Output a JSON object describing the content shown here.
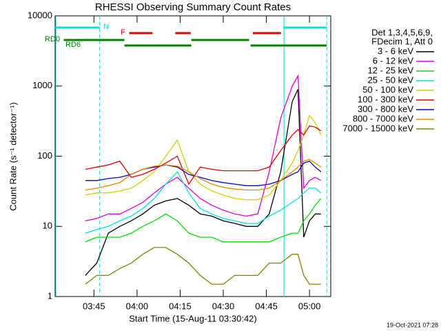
{
  "chart_data": {
    "type": "line",
    "title": "RHESSI Observing Summary Count Rates",
    "x_label": "Start Time (15-Aug-11 03:30:42)",
    "y_label": "Count Rate (s⁻¹ detector⁻¹)",
    "legend_header": [
      "Det 1,3,4,5,6,9,",
      "FDecim 1, Att 0"
    ],
    "footer": "19-Oct-2021 07:28",
    "log_y": true,
    "xlim": [
      211.5,
      307.4
    ],
    "xticks": [
      {
        "value": 225,
        "label": "03:45"
      },
      {
        "value": 240,
        "label": "04:00"
      },
      {
        "value": 255,
        "label": "04:15"
      },
      {
        "value": 270,
        "label": "04:30"
      },
      {
        "value": 285,
        "label": "04:45"
      },
      {
        "value": 300,
        "label": "05:00"
      }
    ],
    "ylim": [
      1,
      10000
    ],
    "yticks": [
      1,
      10,
      100,
      1000,
      10000
    ],
    "x": [
      222,
      226,
      230,
      234,
      238,
      242,
      246,
      250,
      254,
      258,
      262,
      266,
      270,
      274,
      278,
      282,
      286,
      290,
      294,
      296,
      298,
      300,
      302,
      304
    ],
    "series": [
      {
        "name": "3 - 6 keV",
        "color": "#000000",
        "values": [
          2,
          3,
          8,
          10,
          12,
          15,
          20,
          23,
          25,
          20,
          15,
          14,
          12,
          11,
          10,
          10,
          15,
          60,
          600,
          900,
          7,
          12,
          15,
          15
        ]
      },
      {
        "name": "6 - 12 keV",
        "color": "#e000e0",
        "values": [
          12,
          13,
          15,
          15,
          18,
          22,
          30,
          40,
          50,
          35,
          25,
          20,
          17,
          15,
          14,
          15,
          60,
          350,
          1000,
          1400,
          35,
          45,
          50,
          45
        ]
      },
      {
        "name": "12 - 25 keV",
        "color": "#00e000",
        "values": [
          6,
          7,
          7,
          7,
          8,
          10,
          12,
          15,
          12,
          8,
          7,
          7,
          6,
          6,
          6,
          6,
          6,
          7,
          8,
          8,
          12,
          15,
          20,
          25
        ]
      },
      {
        "name": "25 - 50 keV",
        "color": "#00e0e0",
        "values": [
          8,
          9,
          10,
          12,
          14,
          18,
          25,
          40,
          60,
          30,
          18,
          15,
          13,
          12,
          11,
          11,
          14,
          17,
          22,
          25,
          30,
          35,
          35,
          30
        ]
      },
      {
        "name": "50 - 100 keV",
        "color": "#d0d000",
        "values": [
          28,
          30,
          30,
          32,
          35,
          45,
          60,
          100,
          170,
          60,
          40,
          32,
          28,
          25,
          24,
          24,
          28,
          45,
          80,
          120,
          200,
          380,
          300,
          200
        ]
      },
      {
        "name": "100 - 300 keV",
        "color": "#e00000",
        "values": [
          65,
          70,
          75,
          85,
          50,
          55,
          65,
          80,
          100,
          40,
          70,
          65,
          62,
          62,
          62,
          62,
          70,
          120,
          200,
          240,
          200,
          270,
          260,
          230
        ]
      },
      {
        "name": "300 - 800 keV",
        "color": "#0000d0",
        "values": [
          45,
          45,
          48,
          50,
          55,
          65,
          70,
          75,
          70,
          55,
          50,
          45,
          42,
          40,
          38,
          38,
          40,
          45,
          55,
          60,
          80,
          85,
          70,
          60
        ]
      },
      {
        "name": "800 - 7000 keV",
        "color": "#f08000",
        "values": [
          33,
          35,
          38,
          42,
          55,
          65,
          72,
          75,
          72,
          60,
          48,
          40,
          36,
          34,
          33,
          33,
          35,
          45,
          60,
          70,
          85,
          90,
          80,
          70
        ]
      },
      {
        "name": "7000 - 15000 keV",
        "color": "#808000",
        "values": [
          1.5,
          2,
          2,
          2.5,
          3,
          4,
          5,
          5,
          4,
          3,
          2,
          1.5,
          1.5,
          2,
          2,
          2,
          3,
          3,
          4,
          4,
          2,
          1.5,
          1.5,
          1.5
        ]
      }
    ],
    "flags": [
      {
        "label": "N",
        "color": "#00e0e0",
        "segments": [
          [
            211.5,
            227
          ],
          [
            290.9,
            306
          ]
        ]
      },
      {
        "label": "F",
        "color": "#e00000",
        "segments": [
          [
            237.3,
            245.4
          ],
          [
            253.3,
            258.7
          ],
          [
            280.3,
            290.1
          ]
        ]
      },
      {
        "label": "RD0",
        "color": "#008000",
        "segments": [
          [
            214.5,
            235.6
          ],
          [
            258.9,
            279
          ]
        ]
      },
      {
        "label": "RD6",
        "color": "#008000",
        "segments": [
          [
            235.6,
            258.9
          ],
          [
            279.5,
            306
          ]
        ]
      }
    ]
  }
}
